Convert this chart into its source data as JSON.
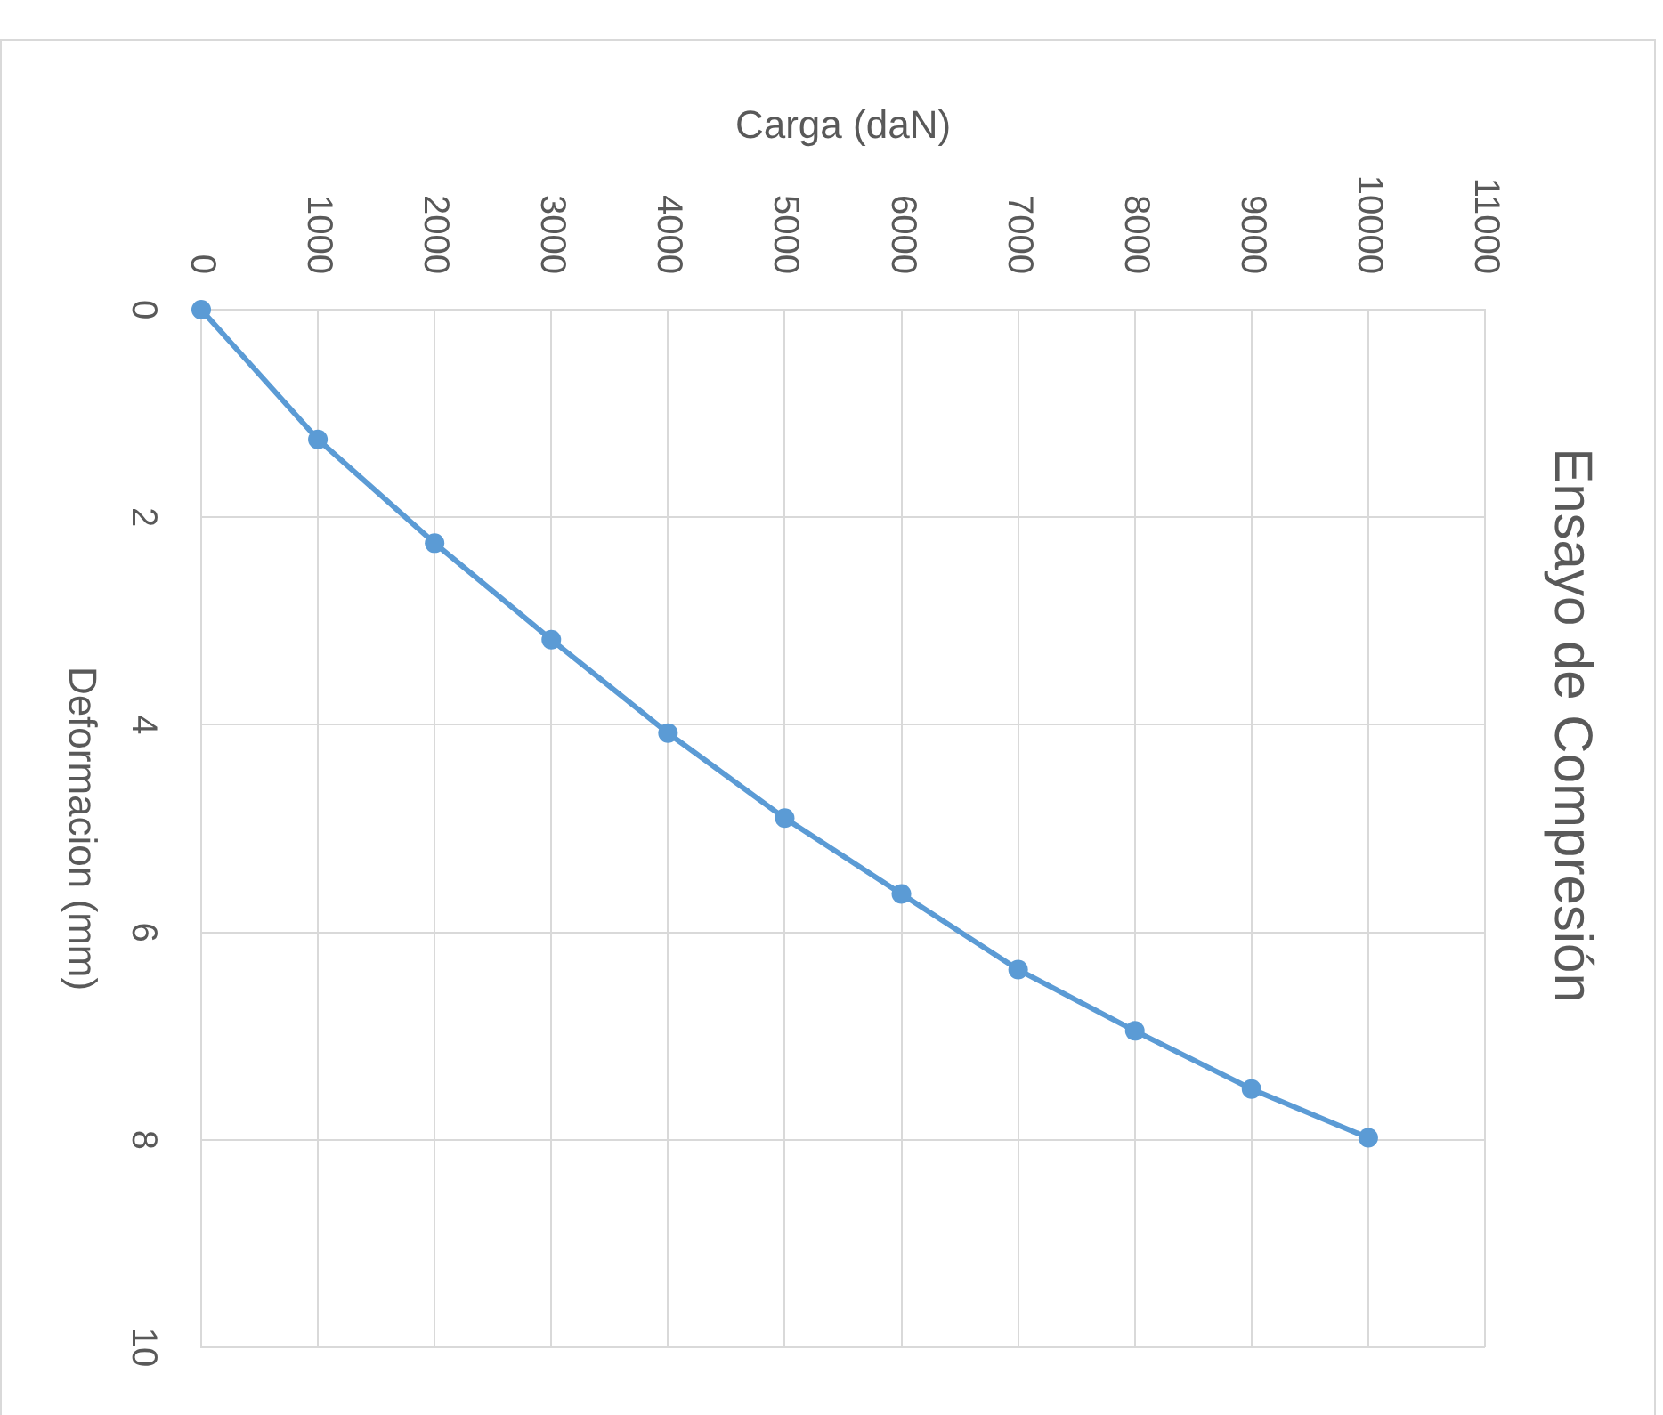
{
  "chart_data": {
    "type": "line",
    "title": "Ensayo de Compresión",
    "xlabel": "Carga (daN)",
    "ylabel": "Deformacion (mm)",
    "x": [
      0,
      1000,
      2000,
      3000,
      4000,
      5000,
      6000,
      7000,
      8000,
      9000,
      10000
    ],
    "series": [
      {
        "color": "#5b9bd5",
        "values": [
          0,
          1.25,
          2.25,
          3.18,
          4.08,
          4.9,
          5.63,
          6.36,
          6.95,
          7.51,
          7.98
        ]
      }
    ],
    "xlim": [
      0,
      11000
    ],
    "xticks": [
      0,
      1000,
      2000,
      3000,
      4000,
      5000,
      6000,
      7000,
      8000,
      9000,
      10000,
      11000
    ],
    "ylim": [
      10,
      0
    ],
    "yticks": [
      0,
      2,
      4,
      6,
      8,
      10
    ],
    "grid": true,
    "legend": false,
    "marker": "circle",
    "line_style": "solid"
  }
}
